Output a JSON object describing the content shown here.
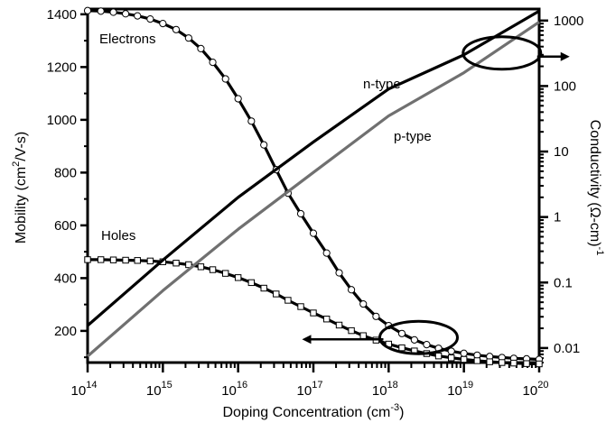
{
  "chart_data": {
    "type": "line",
    "xlabel": "Doping Concentration (cm",
    "xlabel_sup": "-3",
    "xlabel_end": ")",
    "ylabel_left": "Mobility (cm",
    "ylabel_left_sup": "2",
    "ylabel_left_end": "/V-s)",
    "ylabel_right": "Conductivity (Ω-cm)",
    "ylabel_right_sup": "-1",
    "x_scale": "log",
    "xlim": [
      100000000000000.0,
      1e+20
    ],
    "x_ticks": [
      {
        "base": "10",
        "exp": "14",
        "value": 100000000000000.0
      },
      {
        "base": "10",
        "exp": "15",
        "value": 1000000000000000.0
      },
      {
        "base": "10",
        "exp": "16",
        "value": 1e+16
      },
      {
        "base": "10",
        "exp": "17",
        "value": 1e+17
      },
      {
        "base": "10",
        "exp": "18",
        "value": 1e+18
      },
      {
        "base": "10",
        "exp": "19",
        "value": 1e+19
      },
      {
        "base": "10",
        "exp": "20",
        "value": 1e+20
      }
    ],
    "y_left_lim": [
      80,
      1420
    ],
    "y_left_ticks": [
      {
        "label": "200",
        "value": 200
      },
      {
        "label": "400",
        "value": 400
      },
      {
        "label": "600",
        "value": 600
      },
      {
        "label": "800",
        "value": 800
      },
      {
        "label": "1000",
        "value": 1000
      },
      {
        "label": "1200",
        "value": 1200
      },
      {
        "label": "1400",
        "value": 1400
      }
    ],
    "y_right_scale": "log",
    "y_right_lim": [
      0.006,
      1500
    ],
    "y_right_ticks": [
      {
        "label": "0.01",
        "value": 0.01
      },
      {
        "label": "0.1",
        "value": 0.1
      },
      {
        "label": "1",
        "value": 1
      },
      {
        "label": "10",
        "value": 10
      },
      {
        "label": "100",
        "value": 100
      },
      {
        "label": "1000",
        "value": 1000
      }
    ],
    "series": [
      {
        "name": "Electrons",
        "axis": "left",
        "marker": "circle",
        "color": "#000000",
        "x": [
          100000000000000.0,
          150000000000000.0,
          220000000000000.0,
          320000000000000.0,
          460000000000000.0,
          680000000000000.0,
          1000000000000000.0,
          1500000000000000.0,
          2200000000000000.0,
          3200000000000000.0,
          4600000000000000.0,
          6800000000000000.0,
          1e+16,
          1.5e+16,
          2.2e+16,
          3.2e+16,
          4.6e+16,
          6.8e+16,
          1e+17,
          1.5e+17,
          2.2e+17,
          3.2e+17,
          4.6e+17,
          6.8e+17,
          1e+18,
          1.5e+18,
          2.2e+18,
          3.2e+18,
          4.6e+18,
          6.8e+18,
          1e+19,
          1.5e+19,
          2.2e+19,
          3.2e+19,
          4.6e+19,
          6.8e+19,
          1e+20
        ],
        "y": [
          1414,
          1412,
          1408,
          1402,
          1394,
          1382,
          1365,
          1342,
          1310,
          1270,
          1218,
          1155,
          1080,
          995,
          905,
          811,
          722,
          644,
          570,
          495,
          420,
          356,
          302,
          255,
          220,
          190,
          166,
          148,
          134,
          123,
          115,
          108,
          103,
          99,
          96,
          94,
          92
        ]
      },
      {
        "name": "Holes",
        "axis": "left",
        "marker": "square",
        "color": "#000000",
        "x": [
          100000000000000.0,
          150000000000000.0,
          220000000000000.0,
          320000000000000.0,
          460000000000000.0,
          680000000000000.0,
          1000000000000000.0,
          1500000000000000.0,
          2200000000000000.0,
          3200000000000000.0,
          4600000000000000.0,
          6800000000000000.0,
          1e+16,
          1.5e+16,
          2.2e+16,
          3.2e+16,
          4.6e+16,
          6.8e+16,
          1e+17,
          1.5e+17,
          2.2e+17,
          3.2e+17,
          4.6e+17,
          6.8e+17,
          1e+18,
          1.5e+18,
          2.2e+18,
          3.2e+18,
          4.6e+18,
          6.8e+18,
          1e+19,
          1.5e+19,
          2.2e+19,
          3.2e+19,
          4.6e+19,
          6.8e+19,
          1e+20
        ],
        "y": [
          470,
          470,
          469,
          468,
          467,
          465,
          462,
          457,
          451,
          443,
          432,
          418,
          402,
          383,
          362,
          340,
          316,
          292,
          268,
          245,
          222,
          201,
          182,
          165,
          150,
          136,
          124,
          114,
          105,
          98,
          92,
          87,
          83,
          80,
          78,
          76,
          75
        ]
      },
      {
        "name": "n-type",
        "axis": "right",
        "marker": "none",
        "color": "#000000",
        "x": [
          100000000000000.0,
          1000000000000000.0,
          1e+16,
          1e+17,
          1e+18,
          1e+19,
          1e+20
        ],
        "y": [
          0.022,
          0.22,
          2.0,
          14,
          90,
          300,
          1400
        ]
      },
      {
        "name": "p-type",
        "axis": "right",
        "marker": "none",
        "color": "#707070",
        "x": [
          100000000000000.0,
          1000000000000000.0,
          1e+16,
          1e+17,
          1e+18,
          1e+19,
          1e+20
        ],
        "y": [
          0.0075,
          0.075,
          0.65,
          4.8,
          35,
          160,
          950
        ]
      }
    ],
    "annotations": [
      {
        "text": "Electrons",
        "arrow": "none"
      },
      {
        "text": "Holes",
        "arrow": "none"
      },
      {
        "text": "n-type",
        "arrow": "none"
      },
      {
        "text": "p-type",
        "arrow": "none"
      }
    ],
    "callouts": [
      {
        "target_axis": "right",
        "ellipse_center": [
          3.2e+19,
          320
        ],
        "arrow_direction": "right"
      },
      {
        "target_axis": "left",
        "ellipse_center": [
          2.5e+18,
          175
        ],
        "arrow_direction": "left"
      }
    ]
  }
}
